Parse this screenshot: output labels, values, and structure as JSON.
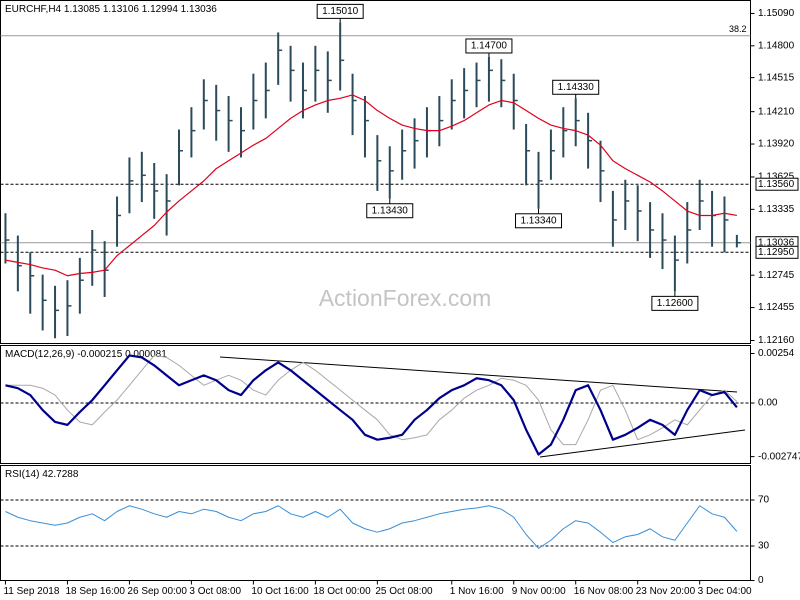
{
  "watermark": "ActionForex.com",
  "chart_data": [
    {
      "type": "ohlc",
      "title": "EURCHF,H4  1.13085 1.13106 1.12994 1.13036",
      "color": "#2b4b5b",
      "ma_color": "#e0001b",
      "xlim": [
        -0.4,
        60.1
      ],
      "ylim": [
        1.12133,
        1.15206
      ],
      "yticks": [
        {
          "value": 1.1509,
          "label": "1.15090"
        },
        {
          "value": 1.148,
          "label": "1.14800"
        },
        {
          "value": 1.14515,
          "label": "1.14515"
        },
        {
          "value": 1.1421,
          "label": "1.14210"
        },
        {
          "value": 1.1392,
          "label": "1.13920"
        },
        {
          "value": 1.13625,
          "label": "1.13625"
        },
        {
          "value": 1.13335,
          "label": "1.13335"
        },
        {
          "value": 1.12745,
          "label": "1.12745"
        },
        {
          "value": 1.12455,
          "label": "1.12455"
        },
        {
          "value": 1.1216,
          "label": "1.12160"
        }
      ],
      "high": [
        1.133,
        1.131,
        1.1295,
        1.1275,
        1.1265,
        1.127,
        1.129,
        1.1315,
        1.1305,
        1.1345,
        1.138,
        1.1385,
        1.1375,
        1.1365,
        1.1405,
        1.1425,
        1.145,
        1.1445,
        1.1435,
        1.1425,
        1.1455,
        1.1465,
        1.1492,
        1.148,
        1.1465,
        1.148,
        1.1475,
        1.1501,
        1.1455,
        1.1435,
        1.14,
        1.139,
        1.1405,
        1.1415,
        1.1425,
        1.1435,
        1.145,
        1.146,
        1.1465,
        1.147,
        1.1468,
        1.1455,
        1.141,
        1.1385,
        1.1405,
        1.1425,
        1.1433,
        1.142,
        1.1395,
        1.135,
        1.136,
        1.1355,
        1.134,
        1.133,
        1.131,
        1.134,
        1.136,
        1.135,
        1.1345,
        1.13106
      ],
      "low": [
        1.1285,
        1.126,
        1.124,
        1.1225,
        1.1218,
        1.122,
        1.124,
        1.1265,
        1.1255,
        1.13,
        1.133,
        1.134,
        1.1325,
        1.131,
        1.1355,
        1.138,
        1.1405,
        1.1395,
        1.1385,
        1.138,
        1.1405,
        1.1415,
        1.1445,
        1.143,
        1.1415,
        1.143,
        1.142,
        1.144,
        1.14,
        1.138,
        1.135,
        1.1343,
        1.136,
        1.137,
        1.138,
        1.139,
        1.1405,
        1.1415,
        1.1425,
        1.143,
        1.1425,
        1.1405,
        1.1355,
        1.1334,
        1.136,
        1.138,
        1.139,
        1.137,
        1.134,
        1.13,
        1.1315,
        1.1305,
        1.129,
        1.128,
        1.126,
        1.1285,
        1.1315,
        1.13,
        1.1295,
        1.12994
      ],
      "close": [
        1.1306,
        1.1283,
        1.1274,
        1.1252,
        1.1243,
        1.1247,
        1.127,
        1.1297,
        1.1279,
        1.1328,
        1.1359,
        1.1364,
        1.135,
        1.1341,
        1.1386,
        1.1404,
        1.1431,
        1.1422,
        1.1413,
        1.1404,
        1.1431,
        1.144,
        1.1476,
        1.1458,
        1.144,
        1.1458,
        1.1449,
        1.1467,
        1.1431,
        1.1413,
        1.1377,
        1.1368,
        1.1386,
        1.1395,
        1.1404,
        1.1413,
        1.1431,
        1.144,
        1.1449,
        1.1458,
        1.1449,
        1.1431,
        1.1386,
        1.1359,
        1.1386,
        1.1404,
        1.1413,
        1.1395,
        1.1368,
        1.1324,
        1.1341,
        1.1332,
        1.1315,
        1.1306,
        1.1288,
        1.1315,
        1.1341,
        1.1328,
        1.1324,
        1.13036
      ],
      "ma": [
        1.1288,
        1.1286,
        1.1284,
        1.1281,
        1.1279,
        1.1274,
        1.1276,
        1.1277,
        1.1279,
        1.1292,
        1.1301,
        1.131,
        1.1319,
        1.1331,
        1.1341,
        1.135,
        1.1359,
        1.137,
        1.1377,
        1.1384,
        1.1391,
        1.1397,
        1.1406,
        1.1415,
        1.1422,
        1.1427,
        1.1431,
        1.1433,
        1.1436,
        1.1431,
        1.1422,
        1.1415,
        1.1409,
        1.1406,
        1.1404,
        1.1404,
        1.1408,
        1.1413,
        1.142,
        1.1427,
        1.1431,
        1.1429,
        1.1422,
        1.1415,
        1.1409,
        1.1406,
        1.1404,
        1.14,
        1.1391,
        1.1377,
        1.137,
        1.1364,
        1.1358,
        1.135,
        1.1341,
        1.1332,
        1.1328,
        1.1328,
        1.133,
        1.1328
      ],
      "levels": [
        {
          "value": 1.1489,
          "label": "38.2",
          "style": "solid",
          "label_position": "inside"
        },
        {
          "value": 1.1356,
          "label": "1.13560",
          "style": "dashed",
          "label_position": "axis"
        },
        {
          "value": 1.13036,
          "label": "1.13036",
          "style": "solid",
          "label_position": "axis"
        },
        {
          "value": 1.1295,
          "label": "1.12950",
          "style": "dashed",
          "label_position": "axis"
        }
      ],
      "annotations": [
        {
          "index": 27,
          "value": 1.1501,
          "label": "1.15010",
          "position": "above"
        },
        {
          "index": 31,
          "value": 1.1343,
          "label": "1.13430",
          "position": "below"
        },
        {
          "index": 39,
          "value": 1.147,
          "label": "1.14700",
          "position": "above"
        },
        {
          "index": 46,
          "value": 1.1433,
          "label": "1.14330",
          "position": "above"
        },
        {
          "index": 43,
          "value": 1.1334,
          "label": "1.13340",
          "position": "below"
        },
        {
          "index": 54,
          "value": 1.126,
          "label": "1.12600",
          "position": "below"
        }
      ]
    },
    {
      "type": "macd",
      "title": "MACD(12,26,9) -0.000215 0.000081",
      "xlim": [
        -0.4,
        60.1
      ],
      "ylim": [
        -0.0031,
        0.00295
      ],
      "yticks": [
        0.00254,
        {
          "value": 0,
          "label": "0.00"
        },
        -0.002747
      ],
      "zero_line": true,
      "series": [
        {
          "color": "#00008b",
          "width": 2.2,
          "values": [
            0.00091,
            0.00076,
            0.00041,
            -0.00036,
            -0.00097,
            -0.00112,
            -0.00046,
            0.00015,
            0.00091,
            0.00168,
            0.00244,
            0.00234,
            0.00193,
            0.00142,
            0.00091,
            0.00117,
            0.00142,
            0.00117,
            0.00066,
            0.00041,
            0.00117,
            0.00168,
            0.00208,
            0.00168,
            0.00117,
            0.00066,
            0.00015,
            -0.00036,
            -0.00086,
            -0.00163,
            -0.00188,
            -0.00178,
            -0.00163,
            -0.00086,
            -0.00036,
            0.00025,
            0.00066,
            0.00091,
            0.00127,
            0.00117,
            0.00091,
            0.00015,
            -0.00137,
            -0.00264,
            -0.00213,
            -0.00086,
            0.00066,
            0.00091,
            -0.00036,
            -0.00188,
            -0.00163,
            -0.00127,
            -0.00086,
            -0.00112,
            -0.00163,
            -0.00036,
            0.00066,
            0.00041,
            0.00056,
            -0.00022
          ]
        },
        {
          "color": "#a8a8a8",
          "width": 1,
          "values": [
            0.00091,
            0.00091,
            0.00091,
            0.00076,
            0.00041,
            -0.00036,
            -0.00097,
            -0.00112,
            -0.00046,
            0.00015,
            0.00091,
            0.00168,
            0.00244,
            0.00234,
            0.00193,
            0.00142,
            0.00091,
            0.00117,
            0.00142,
            0.00117,
            0.00066,
            0.00041,
            0.00117,
            0.00168,
            0.00208,
            0.00168,
            0.00117,
            0.00066,
            0.00015,
            -0.00036,
            -0.00086,
            -0.00163,
            -0.00188,
            -0.00178,
            -0.00163,
            -0.00086,
            -0.00036,
            0.00025,
            0.00066,
            0.00091,
            0.00127,
            0.00117,
            0.00091,
            0.00015,
            -0.00137,
            -0.00213,
            -0.00213,
            -0.00086,
            0.00066,
            0.00091,
            -0.00036,
            -0.00188,
            -0.00163,
            -0.00127,
            -0.00086,
            -0.00112,
            -0.00036,
            0.00041,
            0.00066,
            8e-05
          ]
        }
      ]
    },
    {
      "type": "line",
      "title": "RSI(14) 42.7288",
      "color": "#3a8fd8",
      "xlim": [
        -0.4,
        60.1
      ],
      "ylim": [
        0,
        100
      ],
      "yticks": [
        70,
        30,
        0
      ],
      "dashed_levels": [
        70,
        30
      ],
      "values": [
        60,
        55,
        52,
        50,
        48,
        50,
        55,
        58,
        52,
        60,
        65,
        62,
        58,
        55,
        60,
        58,
        62,
        60,
        55,
        52,
        58,
        60,
        65,
        58,
        55,
        60,
        55,
        62,
        50,
        45,
        42,
        45,
        50,
        52,
        55,
        58,
        60,
        62,
        63,
        65,
        62,
        55,
        40,
        28,
        35,
        45,
        52,
        50,
        42,
        33,
        38,
        40,
        45,
        38,
        35,
        50,
        65,
        58,
        55,
        42.7288
      ],
      "xticks": [
        {
          "value": 0,
          "label": "11 Sep 2018"
        },
        {
          "value": 5,
          "label": "18 Sep 16:00"
        },
        {
          "value": 10,
          "label": "26 Sep 00:00"
        },
        {
          "value": 15,
          "label": "3 Oct 08:00"
        },
        {
          "value": 20,
          "label": "10 Oct 16:00"
        },
        {
          "value": 25,
          "label": "18 Oct 00:00"
        },
        {
          "value": 30,
          "label": "25 Oct 08:00"
        },
        {
          "value": 36,
          "label": "1 Nov 16:00"
        },
        {
          "value": 41,
          "label": "9 Nov 00:00"
        },
        {
          "value": 46,
          "label": "16 Nov 08:00"
        },
        {
          "value": 51,
          "label": "23 Nov 20:00"
        },
        {
          "value": 56,
          "label": "3 Dec 04:00"
        }
      ]
    }
  ]
}
